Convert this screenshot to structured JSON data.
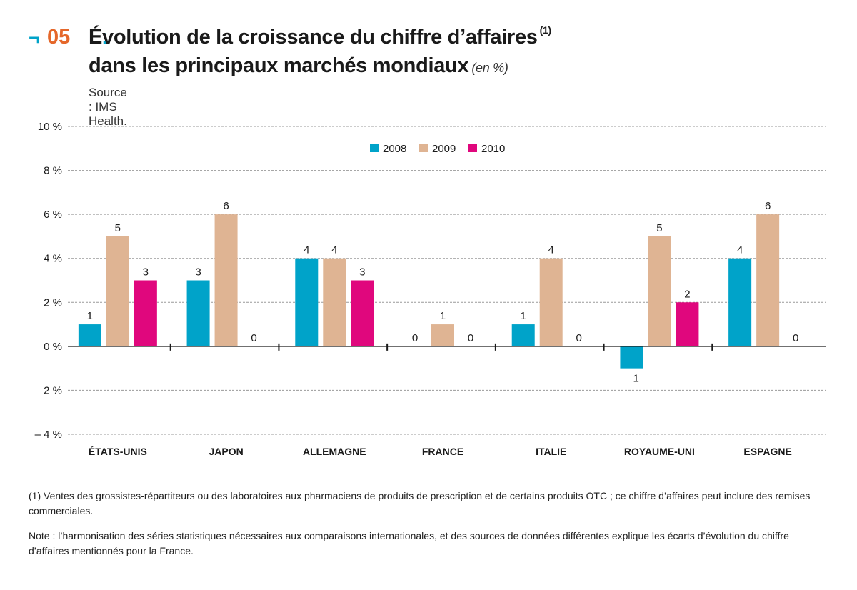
{
  "header": {
    "marker": "¬",
    "number": "05",
    "colon": ":",
    "title_line1": "Évolution de la croissance du chiffre d’affaires",
    "title_sup": "(1)",
    "title_line2": "dans les principaux marchés mondiaux",
    "unit": "(en %)",
    "source": "Source : IMS Health."
  },
  "chart_data": {
    "type": "bar",
    "categories": [
      "ÉTATS-UNIS",
      "JAPON",
      "ALLEMAGNE",
      "FRANCE",
      "ITALIE",
      "ROYAUME-UNI",
      "ESPAGNE"
    ],
    "series": [
      {
        "name": "2008",
        "color": "#00a3c9",
        "values": [
          1,
          3,
          4,
          0,
          1,
          -1,
          4
        ]
      },
      {
        "name": "2009",
        "color": "#dfb493",
        "values": [
          5,
          6,
          4,
          1,
          4,
          5,
          6
        ]
      },
      {
        "name": "2010",
        "color": "#e0077d",
        "values": [
          3,
          0,
          3,
          0,
          0,
          2,
          0
        ]
      }
    ],
    "value_labels": [
      [
        "1",
        "3",
        "4",
        "0",
        "1",
        "– 1",
        "4"
      ],
      [
        "5",
        "6",
        "4",
        "1",
        "4",
        "5",
        "6"
      ],
      [
        "3",
        "0",
        "3",
        "0",
        "0",
        "2",
        "0"
      ]
    ],
    "ylim": [
      -4,
      10
    ],
    "yticks": [
      -4,
      -2,
      0,
      2,
      4,
      6,
      8,
      10
    ],
    "ytick_labels": [
      "– 4 %",
      "– 2 %",
      "0 %",
      "2 %",
      "4 %",
      "6 %",
      "8 %",
      "10 %"
    ],
    "grid": true,
    "legend_position": "top-center",
    "xlabel": "",
    "ylabel": ""
  },
  "notes": {
    "note1": "(1) Ventes des grossistes-répartiteurs ou des laboratoires aux pharmaciens de produits de prescription et de certains produits OTC ; ce chiffre d’affaires peut inclure des remises commerciales.",
    "note2": "Note : l’harmonisation des séries statistiques nécessaires aux comparaisons internationales, et des sources de données différentes explique les écarts d’évolution du chiffre d’affaires mentionnés pour la France."
  }
}
